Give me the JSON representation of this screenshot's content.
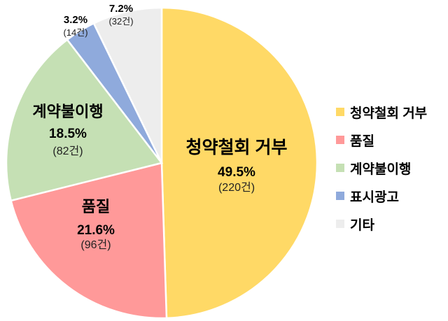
{
  "chart_data": {
    "type": "pie",
    "title": "",
    "start_angle": "12 o'clock, clockwise",
    "legend_position": "right",
    "slices": [
      {
        "label": "청약철회 거부",
        "percent": 49.5,
        "count": 220,
        "pct_text": "49.5%",
        "count_text": "(220건)",
        "color": "#FFD966"
      },
      {
        "label": "품질",
        "percent": 21.6,
        "count": 96,
        "pct_text": "21.6%",
        "count_text": "(96건)",
        "color": "#FF9999"
      },
      {
        "label": "계약불이행",
        "percent": 18.5,
        "count": 82,
        "pct_text": "18.5%",
        "count_text": "(82건)",
        "color": "#C5E0B4"
      },
      {
        "label": "표시광고",
        "percent": 3.2,
        "count": 14,
        "pct_text": "3.2%",
        "count_text": "(14건)",
        "color": "#8FAADC"
      },
      {
        "label": "기타",
        "percent": 7.2,
        "count": 32,
        "pct_text": "7.2%",
        "count_text": "(32건)",
        "color": "#EDEDED"
      }
    ]
  }
}
